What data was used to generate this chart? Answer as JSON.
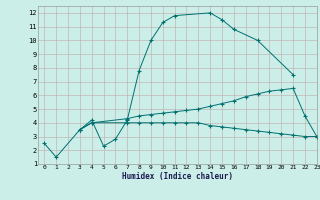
{
  "xlabel": "Humidex (Indice chaleur)",
  "bg_color": "#cceee8",
  "grid_color": "#c0a8a8",
  "line_color": "#007070",
  "xlim": [
    -0.5,
    23
  ],
  "ylim": [
    1,
    12.5
  ],
  "xticks": [
    0,
    1,
    2,
    3,
    4,
    5,
    6,
    7,
    8,
    9,
    10,
    11,
    12,
    13,
    14,
    15,
    16,
    17,
    18,
    19,
    20,
    21,
    22,
    23
  ],
  "yticks": [
    1,
    2,
    3,
    4,
    5,
    6,
    7,
    8,
    9,
    10,
    11,
    12
  ],
  "s1x": [
    0,
    1,
    3,
    4,
    5,
    6,
    7,
    8,
    9,
    10,
    11,
    14,
    15,
    16,
    18,
    21
  ],
  "s1y": [
    2.5,
    1.5,
    3.5,
    4.2,
    2.3,
    2.8,
    4.2,
    7.8,
    10.0,
    11.3,
    11.8,
    12.0,
    11.5,
    10.8,
    10.0,
    7.5
  ],
  "s2x": [
    3,
    4,
    7,
    8,
    9,
    10,
    11,
    12,
    13,
    14,
    15,
    16,
    17,
    18,
    19,
    20,
    21,
    22,
    23
  ],
  "s2y": [
    3.5,
    4.0,
    4.3,
    4.5,
    4.6,
    4.7,
    4.8,
    4.9,
    5.0,
    5.2,
    5.4,
    5.6,
    5.9,
    6.1,
    6.3,
    6.4,
    6.5,
    4.5,
    3.0
  ],
  "s3x": [
    3,
    4,
    7,
    8,
    9,
    10,
    11,
    12,
    13,
    14,
    15,
    16,
    17,
    18,
    19,
    20,
    21,
    22,
    23
  ],
  "s3y": [
    3.5,
    4.0,
    4.0,
    4.0,
    4.0,
    4.0,
    4.0,
    4.0,
    4.0,
    3.8,
    3.7,
    3.6,
    3.5,
    3.4,
    3.3,
    3.2,
    3.1,
    3.0,
    3.0
  ]
}
